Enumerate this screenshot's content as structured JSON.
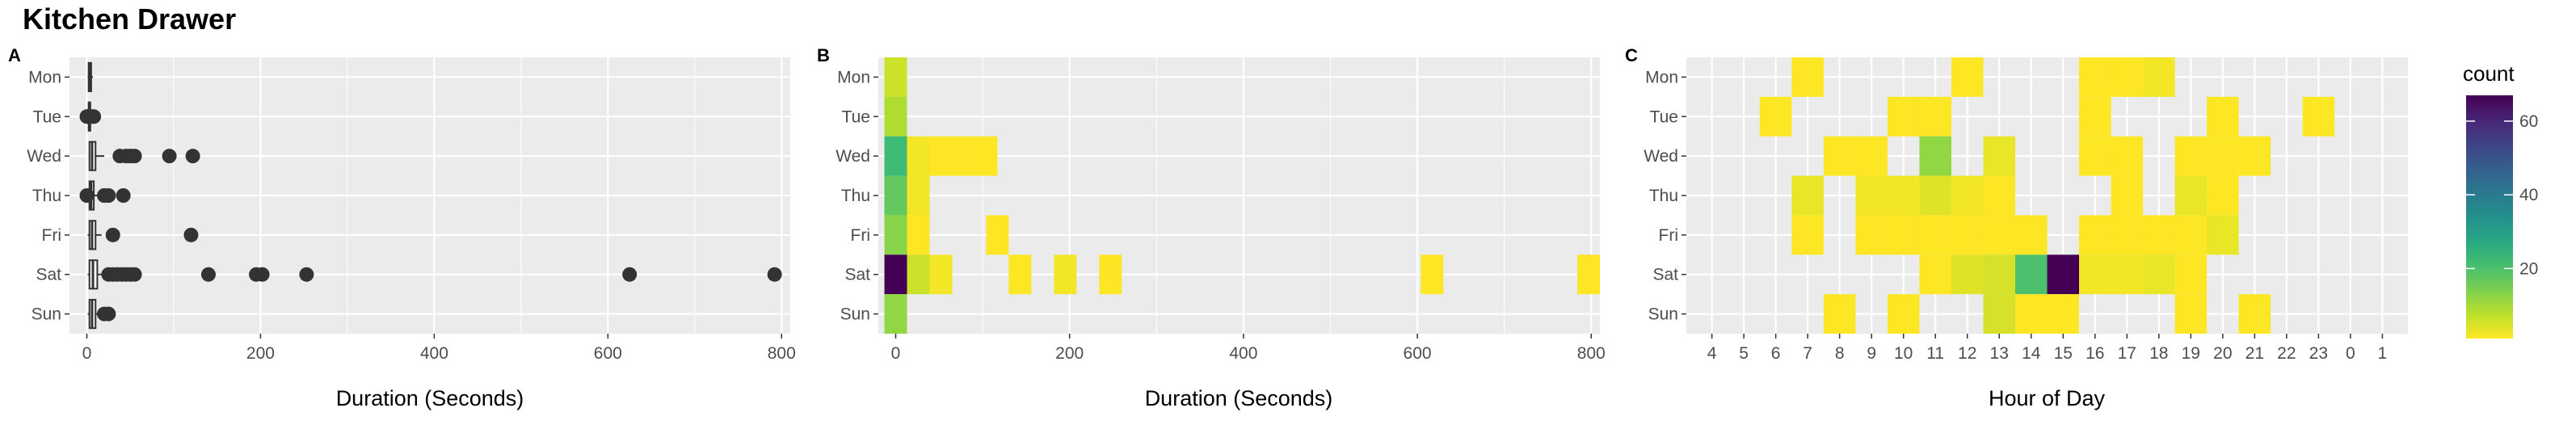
{
  "title": "Kitchen Drawer",
  "chart_data": [
    {
      "panel": "A",
      "type": "boxplot",
      "xlabel": "Duration (Seconds)",
      "ylabel": "",
      "xlim": [
        -20,
        810
      ],
      "xticks": [
        0,
        200,
        400,
        600,
        800
      ],
      "categories": [
        "Mon",
        "Tue",
        "Wed",
        "Thu",
        "Fri",
        "Sat",
        "Sun"
      ],
      "grid": true,
      "boxes": [
        {
          "day": "Mon",
          "q1": 2,
          "median": 3,
          "q3": 5,
          "lo": 1,
          "hi": 7,
          "outliers": []
        },
        {
          "day": "Tue",
          "q1": 2,
          "median": 3,
          "q3": 4,
          "lo": 0,
          "hi": 7,
          "outliers": [
            0,
            1,
            6,
            8
          ]
        },
        {
          "day": "Wed",
          "q1": 3,
          "median": 6,
          "q3": 10,
          "lo": 2,
          "hi": 20,
          "outliers": [
            38,
            45,
            50,
            55,
            95,
            122
          ]
        },
        {
          "day": "Thu",
          "q1": 3,
          "median": 5,
          "q3": 8,
          "lo": 1,
          "hi": 14,
          "outliers": [
            0,
            20,
            25,
            42
          ]
        },
        {
          "day": "Fri",
          "q1": 3,
          "median": 6,
          "q3": 10,
          "lo": 1,
          "hi": 17,
          "outliers": [
            30,
            120
          ]
        },
        {
          "day": "Sat",
          "q1": 3,
          "median": 7,
          "q3": 12,
          "lo": 1,
          "hi": 22,
          "outliers": [
            25,
            30,
            35,
            40,
            45,
            50,
            55,
            140,
            195,
            202,
            253,
            625,
            792
          ]
        },
        {
          "day": "Sun",
          "q1": 3,
          "median": 6,
          "q3": 10,
          "lo": 1,
          "hi": 17,
          "outliers": [
            20,
            25
          ]
        }
      ]
    },
    {
      "panel": "B",
      "type": "heatmap",
      "xlabel": "Duration (Seconds)",
      "ylabel": "",
      "xlim": [
        -20,
        810
      ],
      "xticks": [
        0,
        200,
        400,
        600,
        800
      ],
      "categories": [
        "Mon",
        "Tue",
        "Wed",
        "Thu",
        "Fri",
        "Sat",
        "Sun"
      ],
      "bin_width": 26,
      "color_scale": {
        "name": "viridis",
        "min": 1,
        "max": 67,
        "reversed": true
      },
      "cells": [
        {
          "x": 0,
          "day": "Mon",
          "count": 6
        },
        {
          "x": 0,
          "day": "Tue",
          "count": 9
        },
        {
          "x": 0,
          "day": "Wed",
          "count": 22
        },
        {
          "x": 26,
          "day": "Wed",
          "count": 2
        },
        {
          "x": 52,
          "day": "Wed",
          "count": 1
        },
        {
          "x": 78,
          "day": "Wed",
          "count": 1
        },
        {
          "x": 104,
          "day": "Wed",
          "count": 1
        },
        {
          "x": 0,
          "day": "Thu",
          "count": 17
        },
        {
          "x": 26,
          "day": "Thu",
          "count": 2
        },
        {
          "x": 0,
          "day": "Fri",
          "count": 13
        },
        {
          "x": 26,
          "day": "Fri",
          "count": 1
        },
        {
          "x": 117,
          "day": "Fri",
          "count": 1
        },
        {
          "x": 0,
          "day": "Sat",
          "count": 67
        },
        {
          "x": 26,
          "day": "Sat",
          "count": 6
        },
        {
          "x": 52,
          "day": "Sat",
          "count": 2
        },
        {
          "x": 143,
          "day": "Sat",
          "count": 1
        },
        {
          "x": 195,
          "day": "Sat",
          "count": 2
        },
        {
          "x": 247,
          "day": "Sat",
          "count": 1
        },
        {
          "x": 617,
          "day": "Sat",
          "count": 1
        },
        {
          "x": 797,
          "day": "Sat",
          "count": 1
        },
        {
          "x": 0,
          "day": "Sun",
          "count": 12
        }
      ]
    },
    {
      "panel": "C",
      "type": "heatmap",
      "xlabel": "Hour of Day",
      "ylabel": "",
      "xcategories": [
        "4",
        "5",
        "6",
        "7",
        "8",
        "9",
        "10",
        "11",
        "12",
        "13",
        "14",
        "15",
        "16",
        "17",
        "18",
        "19",
        "20",
        "21",
        "22",
        "23",
        "0",
        "1"
      ],
      "categories": [
        "Mon",
        "Tue",
        "Wed",
        "Thu",
        "Fri",
        "Sat",
        "Sun"
      ],
      "color_scale": {
        "name": "viridis",
        "min": 1,
        "max": 67,
        "reversed": true
      },
      "cells": [
        {
          "hour": "7",
          "day": "Mon",
          "count": 1
        },
        {
          "hour": "12",
          "day": "Mon",
          "count": 1
        },
        {
          "hour": "16",
          "day": "Mon",
          "count": 1
        },
        {
          "hour": "17",
          "day": "Mon",
          "count": 1
        },
        {
          "hour": "18",
          "day": "Mon",
          "count": 2
        },
        {
          "hour": "6",
          "day": "Tue",
          "count": 1
        },
        {
          "hour": "10",
          "day": "Tue",
          "count": 1
        },
        {
          "hour": "11",
          "day": "Tue",
          "count": 1
        },
        {
          "hour": "16",
          "day": "Tue",
          "count": 1
        },
        {
          "hour": "20",
          "day": "Tue",
          "count": 1
        },
        {
          "hour": "23",
          "day": "Tue",
          "count": 1
        },
        {
          "hour": "8",
          "day": "Wed",
          "count": 1
        },
        {
          "hour": "9",
          "day": "Wed",
          "count": 1
        },
        {
          "hour": "11",
          "day": "Wed",
          "count": 12
        },
        {
          "hour": "13",
          "day": "Wed",
          "count": 3
        },
        {
          "hour": "16",
          "day": "Wed",
          "count": 1
        },
        {
          "hour": "17",
          "day": "Wed",
          "count": 1
        },
        {
          "hour": "19",
          "day": "Wed",
          "count": 1
        },
        {
          "hour": "20",
          "day": "Wed",
          "count": 1
        },
        {
          "hour": "21",
          "day": "Wed",
          "count": 1
        },
        {
          "hour": "7",
          "day": "Thu",
          "count": 3
        },
        {
          "hour": "9",
          "day": "Thu",
          "count": 2
        },
        {
          "hour": "10",
          "day": "Thu",
          "count": 2
        },
        {
          "hour": "11",
          "day": "Thu",
          "count": 4
        },
        {
          "hour": "12",
          "day": "Thu",
          "count": 2
        },
        {
          "hour": "13",
          "day": "Thu",
          "count": 1
        },
        {
          "hour": "17",
          "day": "Thu",
          "count": 1
        },
        {
          "hour": "19",
          "day": "Thu",
          "count": 3
        },
        {
          "hour": "20",
          "day": "Thu",
          "count": 1
        },
        {
          "hour": "7",
          "day": "Fri",
          "count": 1
        },
        {
          "hour": "9",
          "day": "Fri",
          "count": 1
        },
        {
          "hour": "10",
          "day": "Fri",
          "count": 1
        },
        {
          "hour": "11",
          "day": "Fri",
          "count": 1
        },
        {
          "hour": "12",
          "day": "Fri",
          "count": 1
        },
        {
          "hour": "13",
          "day": "Fri",
          "count": 1
        },
        {
          "hour": "14",
          "day": "Fri",
          "count": 1
        },
        {
          "hour": "16",
          "day": "Fri",
          "count": 1
        },
        {
          "hour": "17",
          "day": "Fri",
          "count": 1
        },
        {
          "hour": "18",
          "day": "Fri",
          "count": 1
        },
        {
          "hour": "19",
          "day": "Fri",
          "count": 1
        },
        {
          "hour": "20",
          "day": "Fri",
          "count": 3
        },
        {
          "hour": "11",
          "day": "Sat",
          "count": 1
        },
        {
          "hour": "12",
          "day": "Sat",
          "count": 4
        },
        {
          "hour": "13",
          "day": "Sat",
          "count": 5
        },
        {
          "hour": "14",
          "day": "Sat",
          "count": 20
        },
        {
          "hour": "15",
          "day": "Sat",
          "count": 67
        },
        {
          "hour": "16",
          "day": "Sat",
          "count": 2
        },
        {
          "hour": "17",
          "day": "Sat",
          "count": 2
        },
        {
          "hour": "18",
          "day": "Sat",
          "count": 3
        },
        {
          "hour": "19",
          "day": "Sat",
          "count": 1
        },
        {
          "hour": "8",
          "day": "Sun",
          "count": 1
        },
        {
          "hour": "10",
          "day": "Sun",
          "count": 1
        },
        {
          "hour": "13",
          "day": "Sun",
          "count": 5
        },
        {
          "hour": "14",
          "day": "Sun",
          "count": 1
        },
        {
          "hour": "15",
          "day": "Sun",
          "count": 1
        },
        {
          "hour": "19",
          "day": "Sun",
          "count": 1
        },
        {
          "hour": "21",
          "day": "Sun",
          "count": 1
        }
      ]
    }
  ],
  "legend": {
    "title": "count",
    "ticks": [
      20,
      40,
      60
    ]
  }
}
